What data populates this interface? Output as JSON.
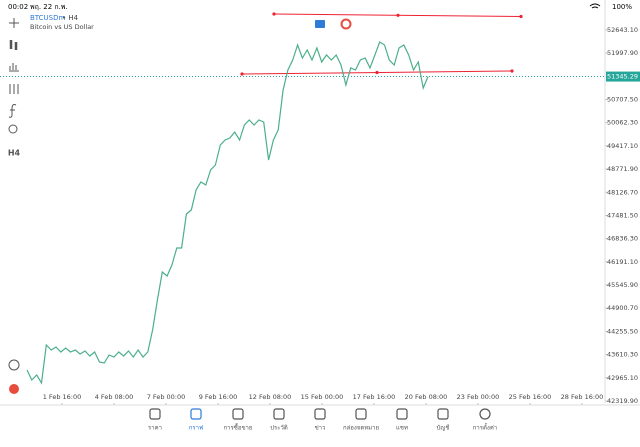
{
  "status_bar": {
    "time": "00:02",
    "date": "พฤ. 22 ก.พ.",
    "battery": "100%"
  },
  "chart": {
    "type": "line",
    "symbol": "BTCUSDm",
    "timeframe_label": "• H4",
    "description": "Bitcoin vs US Dollar",
    "color": "#4caf8a",
    "current_price": 51345.29,
    "price_color": "#26a69a",
    "ylim": [
      42264,
      53197
    ],
    "yticks": [
      {
        "value": 42319.9,
        "label": "42319.90"
      },
      {
        "value": 42965.1,
        "label": "42965.10"
      },
      {
        "value": 43610.3,
        "label": "43610.30"
      },
      {
        "value": 44255.5,
        "label": "44255.50"
      },
      {
        "value": 44900.7,
        "label": "44900.70"
      },
      {
        "value": 45545.9,
        "label": "45545.90"
      },
      {
        "value": 46191.1,
        "label": "46191.10"
      },
      {
        "value": 46836.3,
        "label": "46836.30"
      },
      {
        "value": 47481.5,
        "label": "47481.50"
      },
      {
        "value": 48126.7,
        "label": "48126.70"
      },
      {
        "value": 48771.9,
        "label": "48771.90"
      },
      {
        "value": 49417.1,
        "label": "49417.10"
      },
      {
        "value": 50062.3,
        "label": "50062.30"
      },
      {
        "value": 50707.5,
        "label": "50707.50"
      },
      {
        "value": 51997.9,
        "label": "51997.90"
      },
      {
        "value": 52643.1,
        "label": "52643.10"
      }
    ],
    "x_labels": [
      "1 Feb 16:00",
      "4 Feb 08:00",
      "7 Feb 00:00",
      "9 Feb 16:00",
      "12 Feb 08:00",
      "15 Feb 00:00",
      "17 Feb 16:00",
      "20 Feb 08:00",
      "23 Feb 00:00",
      "25 Feb 16:00",
      "28 Feb 16:00"
    ],
    "values": [
      43182,
      42904,
      43043,
      42821,
      43878,
      43739,
      43822,
      43683,
      43794,
      43683,
      43739,
      43628,
      43711,
      43572,
      43683,
      43405,
      43377,
      43600,
      43544,
      43683,
      43572,
      43711,
      43544,
      43739,
      43544,
      43683,
      44295,
      45130,
      45909,
      45798,
      46104,
      46576,
      46576,
      47522,
      47634,
      48190,
      48413,
      48329,
      48746,
      48886,
      49442,
      49581,
      49637,
      49804,
      49581,
      49998,
      50137,
      49998,
      50137,
      50082,
      49025,
      49581,
      49859,
      50972,
      51528,
      51807,
      52224,
      51862,
      52085,
      51807,
      52140,
      51751,
      51946,
      51807,
      51946,
      51668,
      51111,
      51584,
      51528,
      51807,
      51862,
      51584,
      51946,
      52307,
      52224,
      51807,
      51668,
      52140,
      52224,
      51946,
      51528,
      51751,
      51028,
      51345.29
    ]
  },
  "left_toolbar": {
    "timeframe": "H4"
  },
  "tabs": [
    "ราคา",
    "กราฟ",
    "การซื้อขาย",
    "ประวัติ",
    "ข่าว",
    "กล่องจดหมาย",
    "แชท",
    "บัญชี",
    "การตั้งค่า"
  ]
}
